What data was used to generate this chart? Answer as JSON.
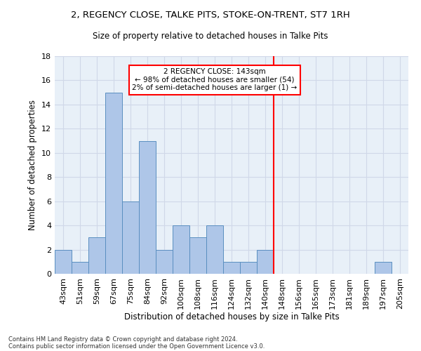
{
  "title1": "2, REGENCY CLOSE, TALKE PITS, STOKE-ON-TRENT, ST7 1RH",
  "title2": "Size of property relative to detached houses in Talke Pits",
  "xlabel": "Distribution of detached houses by size in Talke Pits",
  "ylabel": "Number of detached properties",
  "bin_labels": [
    "43sqm",
    "51sqm",
    "59sqm",
    "67sqm",
    "75sqm",
    "84sqm",
    "92sqm",
    "100sqm",
    "108sqm",
    "116sqm",
    "124sqm",
    "132sqm",
    "140sqm",
    "148sqm",
    "156sqm",
    "165sqm",
    "173sqm",
    "181sqm",
    "189sqm",
    "197sqm",
    "205sqm"
  ],
  "bar_values": [
    2,
    1,
    3,
    15,
    6,
    11,
    2,
    4,
    3,
    4,
    1,
    1,
    2,
    0,
    0,
    0,
    0,
    0,
    0,
    1,
    0
  ],
  "bar_color": "#aec6e8",
  "bar_edge_color": "#5a8fc0",
  "grid_color": "#d0d8e8",
  "bg_color": "#e8f0f8",
  "vline_color": "red",
  "annotation_text": "2 REGENCY CLOSE: 143sqm\n← 98% of detached houses are smaller (54)\n2% of semi-detached houses are larger (1) →",
  "annotation_box_color": "white",
  "annotation_box_edge": "red",
  "ylim": [
    0,
    18
  ],
  "yticks": [
    0,
    2,
    4,
    6,
    8,
    10,
    12,
    14,
    16,
    18
  ],
  "footnote1": "Contains HM Land Registry data © Crown copyright and database right 2024.",
  "footnote2": "Contains public sector information licensed under the Open Government Licence v3.0."
}
